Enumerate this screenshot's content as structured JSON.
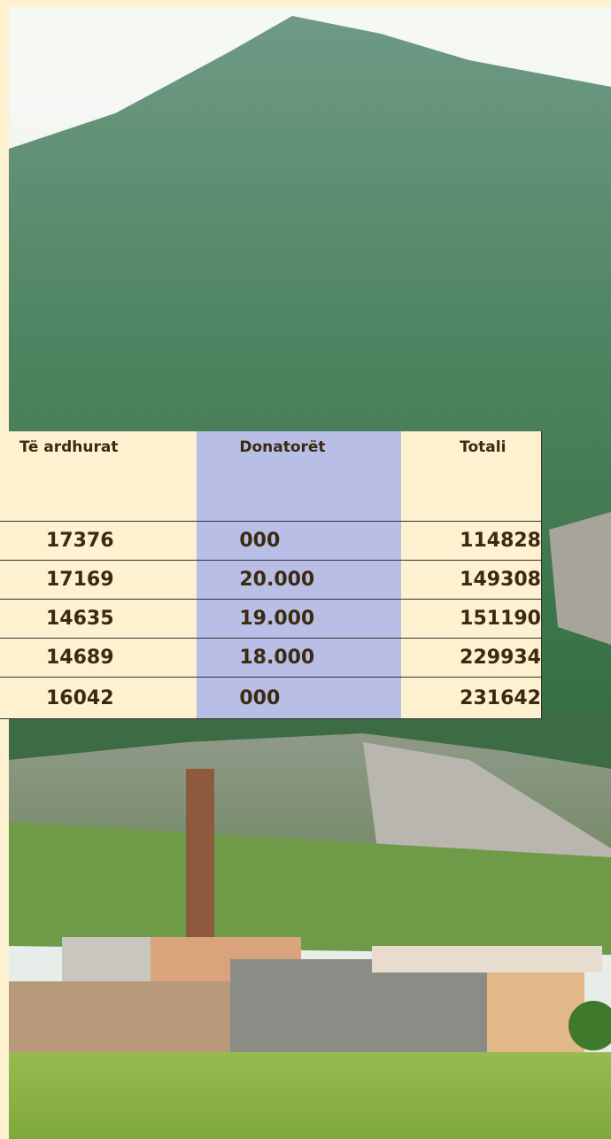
{
  "table": {
    "header": [
      "Të ardhurat",
      "Donatorët",
      "Totali"
    ],
    "rows": [
      [
        "17376",
        "000",
        "114828"
      ],
      [
        "17169",
        "20.000",
        "149308"
      ],
      [
        "14635",
        "19.000",
        "151190"
      ],
      [
        "14689",
        "18.000",
        "229934"
      ],
      [
        "16042",
        "000",
        "231642"
      ]
    ]
  }
}
